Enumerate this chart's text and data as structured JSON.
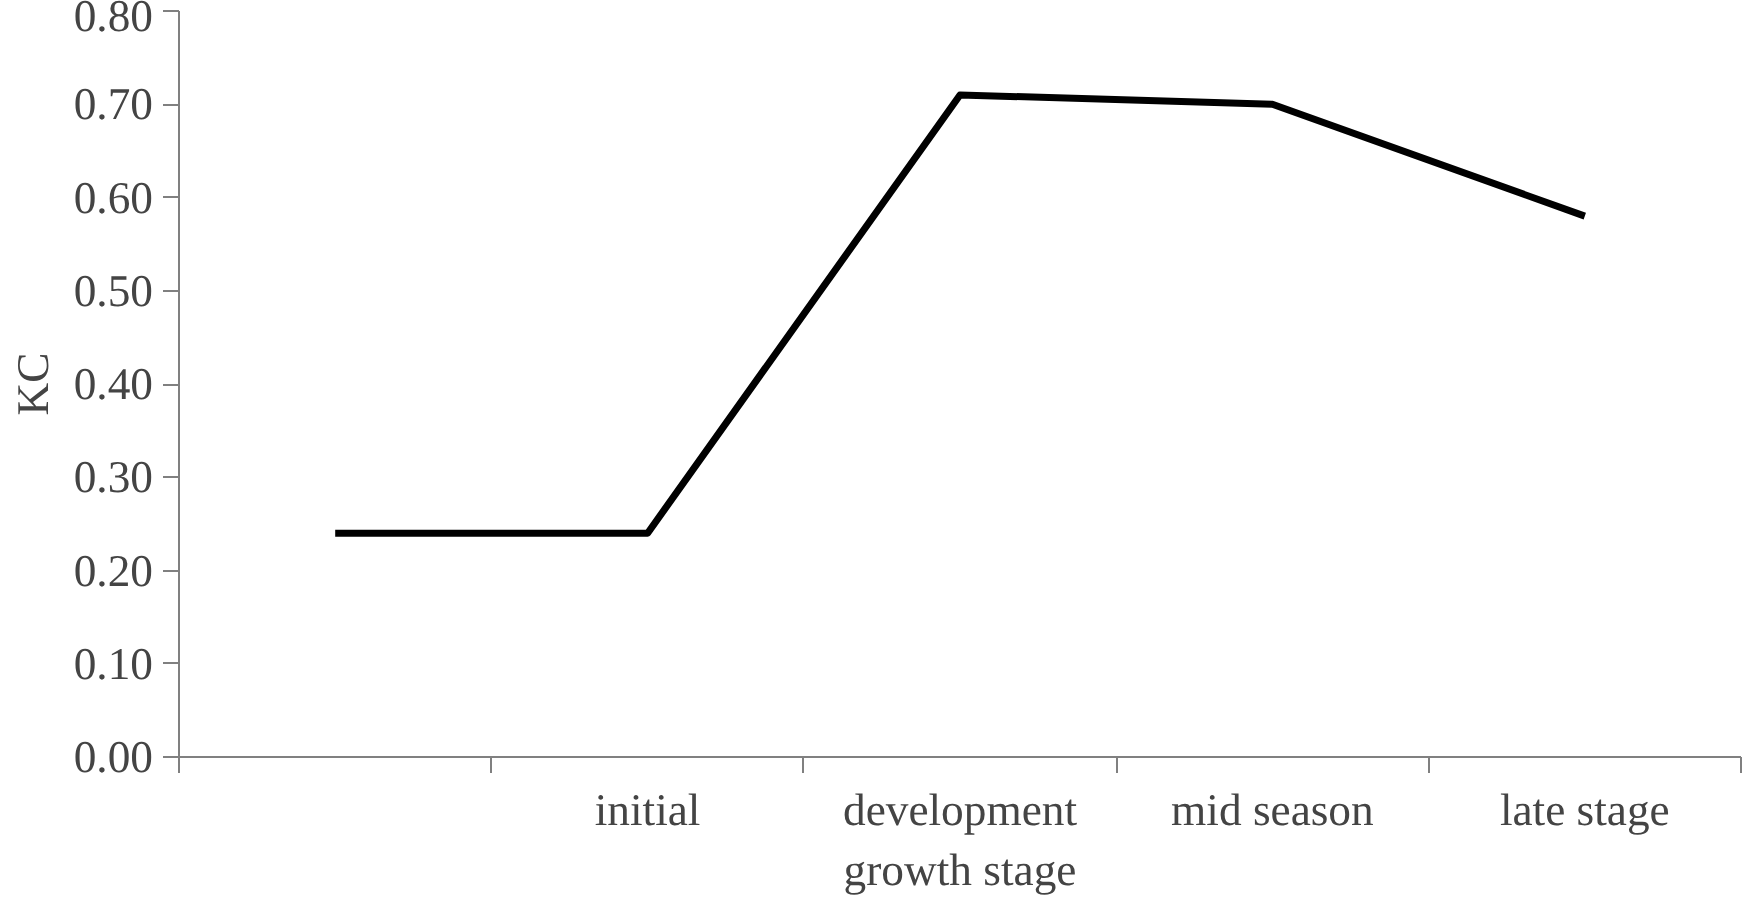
{
  "chart_data": {
    "type": "line",
    "ylabel": "KC",
    "xlabel": "growth stage",
    "categories": [
      null,
      "initial",
      "development",
      "mid season",
      "late stage"
    ],
    "series": [
      {
        "color": "#000000",
        "values": [
          0.24,
          0.24,
          0.71,
          0.7,
          0.58
        ]
      }
    ],
    "ylim": [
      0,
      0.8
    ],
    "yticks": [
      {
        "value": 0,
        "label": "0.00"
      },
      {
        "value": 0.1,
        "label": "0.10"
      },
      {
        "value": 0.2,
        "label": "0.20"
      },
      {
        "value": 0.3,
        "label": "0.30"
      },
      {
        "value": 0.4,
        "label": "0.40"
      },
      {
        "value": 0.5,
        "label": "0.50"
      },
      {
        "value": 0.6,
        "label": "0.60"
      },
      {
        "value": 0.7,
        "label": "0.70"
      },
      {
        "value": 0.8,
        "label": "0.80"
      }
    ],
    "grid": false,
    "marker": "none",
    "line_style": "solid"
  }
}
